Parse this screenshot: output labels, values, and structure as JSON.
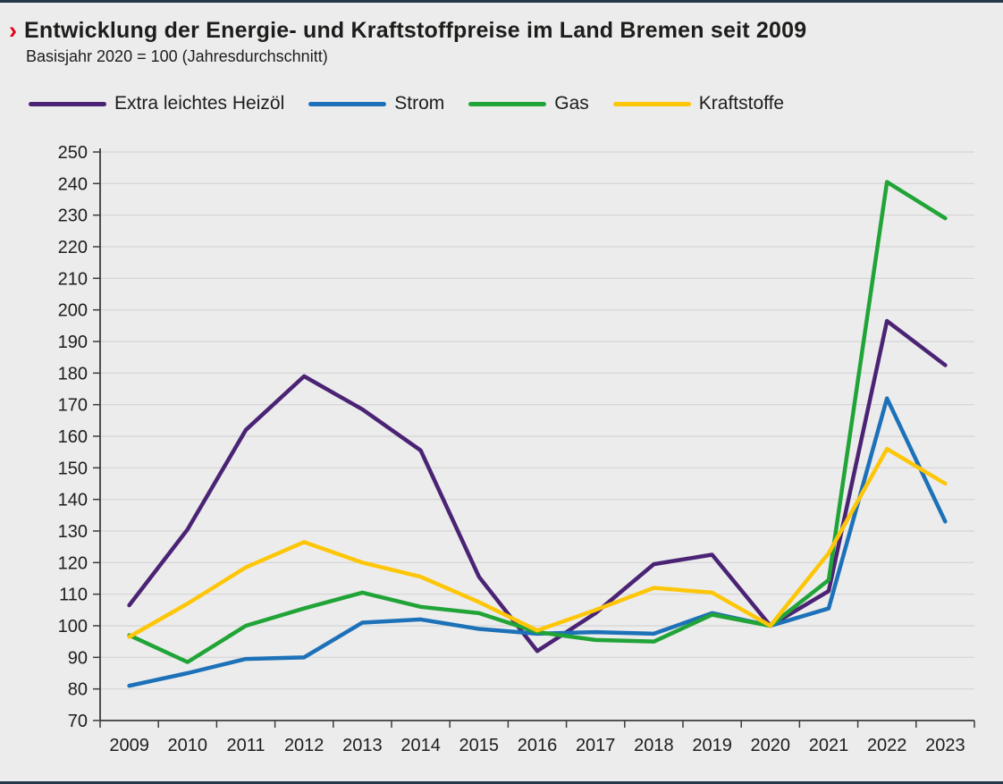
{
  "page": {
    "title": "Entwicklung der Energie- und Kraftstoffpreise im Land Bremen seit 2009",
    "subtitle": "Basisjahr 2020 = 100 (Jahresdurchschnitt)",
    "title_marker": "›"
  },
  "colors": {
    "background": "#ececec",
    "edge_line": "#25384a",
    "title_marker": "#e2001a",
    "grid": "#d4d4d4",
    "axis": "#3c3c3c",
    "text": "#1d1d1b"
  },
  "chart_data": {
    "type": "line",
    "title": "Entwicklung der Energie- und Kraftstoffpreise im Land Bremen seit 2009",
    "subtitle": "Basisjahr 2020 = 100 (Jahresdurchschnitt)",
    "xlabel": "",
    "ylabel": "",
    "ylim": [
      70,
      250
    ],
    "ytick_step": 10,
    "grid": true,
    "legend_position": "top",
    "categories": [
      "2009",
      "2010",
      "2011",
      "2012",
      "2013",
      "2014",
      "2015",
      "2016",
      "2017",
      "2018",
      "2019",
      "2020",
      "2021",
      "2022",
      "2023"
    ],
    "series": [
      {
        "name": "Extra leichtes Heizöl",
        "color": "#4b2374",
        "values": [
          106.5,
          130.5,
          162,
          179,
          168.5,
          155.5,
          115.5,
          92,
          104,
          119.5,
          122.5,
          100,
          111,
          196.5,
          182.5
        ]
      },
      {
        "name": "Strom",
        "color": "#1d71b8",
        "values": [
          81,
          85,
          89.5,
          90,
          101,
          102,
          99,
          97.5,
          98,
          97.5,
          104,
          100,
          105.5,
          172,
          133
        ]
      },
      {
        "name": "Gas",
        "color": "#21a437",
        "values": [
          97,
          88.5,
          100,
          105.5,
          110.5,
          106,
          104,
          98,
          95.5,
          95,
          103.5,
          100,
          114.5,
          240.5,
          229
        ]
      },
      {
        "name": "Kraftstoffe",
        "color": "#fdc608",
        "values": [
          96.5,
          107,
          118.5,
          126.5,
          120,
          115.5,
          107.5,
          98.5,
          105,
          112,
          110.5,
          100,
          123,
          156,
          145
        ]
      }
    ]
  }
}
